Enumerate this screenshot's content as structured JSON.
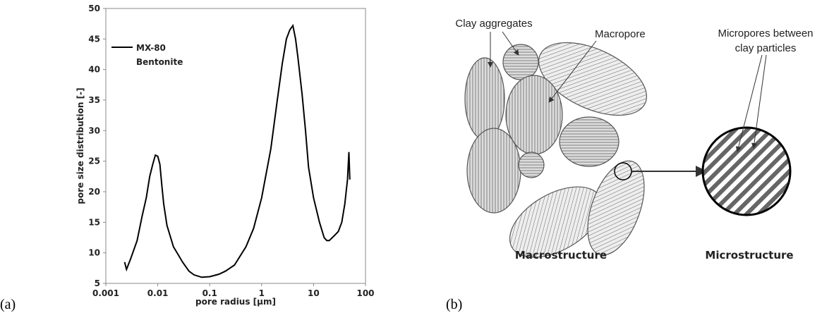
{
  "chart_data": {
    "type": "line",
    "xlabel": "pore radius [µm]",
    "ylabel": "pore size distribution [-]",
    "xlog": true,
    "xlim": [
      0.001,
      100
    ],
    "xticks": [
      0.001,
      0.01,
      0.1,
      1,
      10,
      100
    ],
    "ylim": [
      5,
      50
    ],
    "yticks": [
      5,
      10,
      15,
      20,
      25,
      30,
      35,
      40,
      45,
      50
    ],
    "legend_note": "Bentonite",
    "series": [
      {
        "name": "MX-80",
        "color": "#000000",
        "x": [
          0.0023,
          0.0025,
          0.003,
          0.004,
          0.005,
          0.006,
          0.007,
          0.008,
          0.009,
          0.01,
          0.011,
          0.012,
          0.013,
          0.015,
          0.02,
          0.03,
          0.04,
          0.05,
          0.07,
          0.1,
          0.15,
          0.2,
          0.3,
          0.5,
          0.7,
          1,
          1.5,
          2,
          2.5,
          3,
          3.5,
          4,
          4.5,
          5,
          6,
          7,
          8,
          10,
          13,
          16,
          18,
          20,
          25,
          30,
          35,
          40,
          45,
          48,
          50
        ],
        "values": [
          8.5,
          7.3,
          9,
          12,
          16,
          19,
          22.5,
          24.5,
          26,
          25.8,
          24.5,
          21,
          18,
          14.5,
          11,
          8.5,
          7,
          6.4,
          6,
          6.1,
          6.5,
          7,
          8,
          11,
          14,
          19,
          27,
          35,
          41,
          45,
          46.5,
          47.2,
          45,
          42,
          36,
          30,
          24,
          19,
          15,
          12.5,
          12,
          12,
          12.8,
          13.5,
          15,
          18,
          22,
          26.5,
          22
        ]
      }
    ]
  },
  "panels": [
    "(a)",
    "(b)"
  ],
  "diagram": {
    "clay_aggregates": "Clay aggregates",
    "macropore": "Macropore",
    "micropores": [
      "Micropores between",
      "clay particles"
    ],
    "macrostructure": "Macrostructure",
    "microstructure": "Microstructure"
  }
}
